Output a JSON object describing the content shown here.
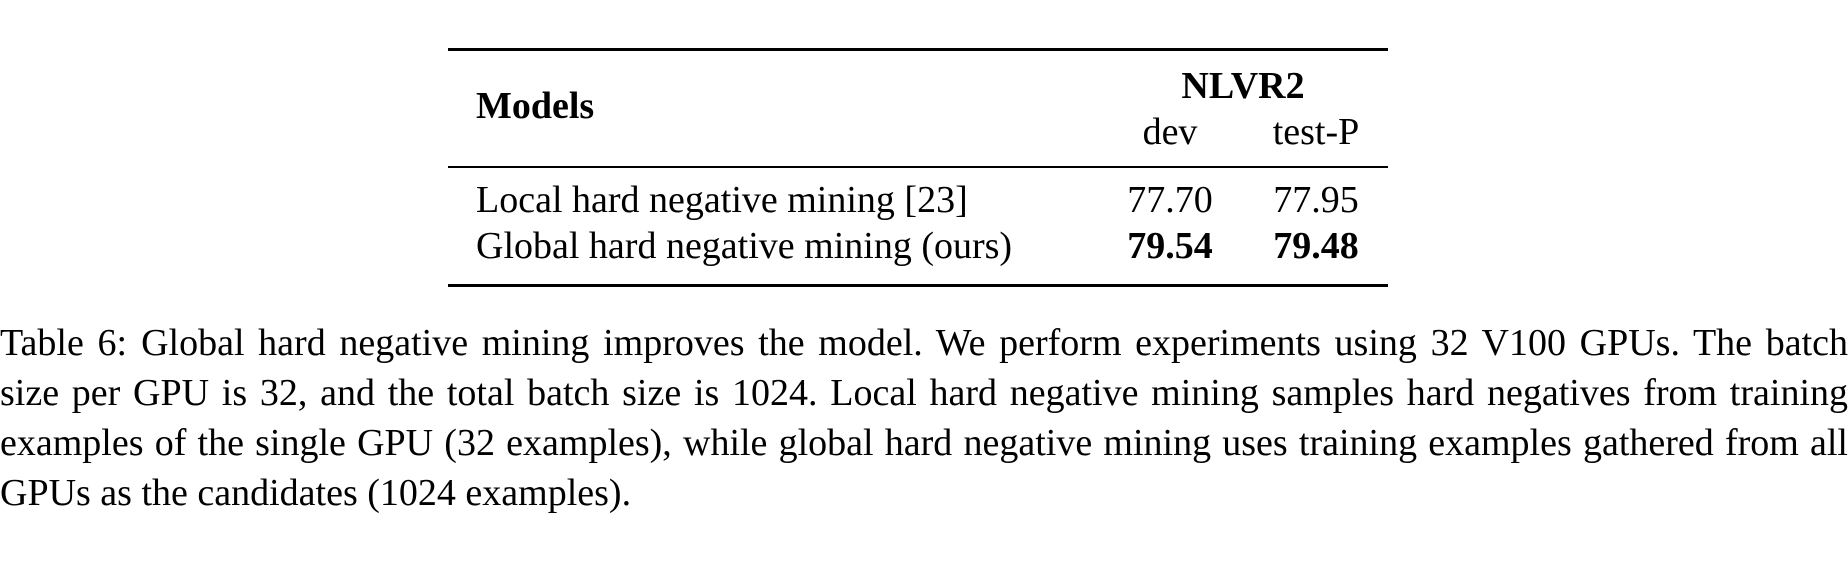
{
  "table": {
    "header": {
      "models_label": "Models",
      "group_label": "NLVR2",
      "columns": [
        "dev",
        "test-P"
      ]
    },
    "rows": [
      {
        "model": "Local hard negative mining [23]",
        "values": [
          "77.70",
          "77.95"
        ],
        "bold": false
      },
      {
        "model": "Global hard negative mining (ours)",
        "values": [
          "79.54",
          "79.48"
        ],
        "bold": true
      }
    ]
  },
  "caption": {
    "label": "Table 6:",
    "text": "Global hard negative mining improves the model. We perform experiments using 32 V100 GPUs. The batch size per GPU is 32, and the total batch size is 1024. Local hard negative mining samples hard negatives from training examples of the single GPU (32 examples), while global hard negative mining uses training examples gathered from all GPUs as the candidates (1024 examples)."
  }
}
